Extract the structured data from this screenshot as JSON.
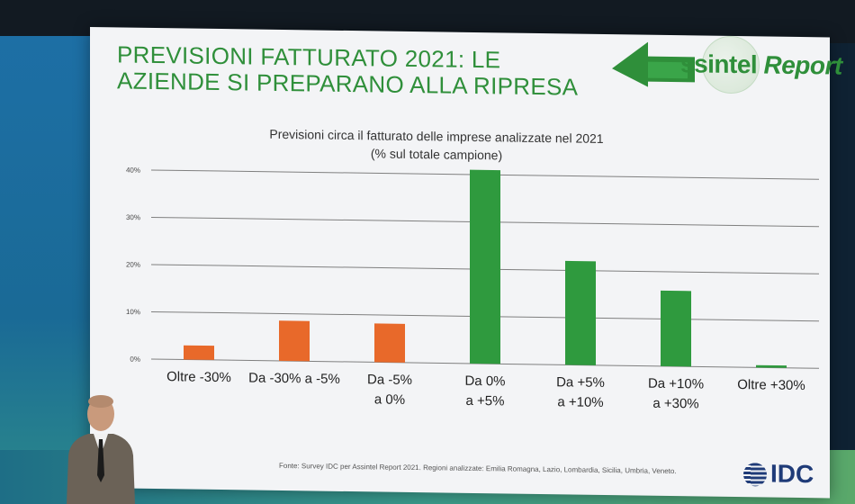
{
  "slide": {
    "title_line1": "PREVISIONI FATTURATO 2021: LE",
    "title_line2": "AZIENDE SI PREPARANO ALLA RIPRESA",
    "logo_text_a": "ssintel",
    "logo_text_b": "Report",
    "source": "Fonte: Survey IDC per Assintel Report 2021. Regioni analizzate: Emilia Romagna, Lazio, Lombardia, Sicilia, Umbria, Veneto.",
    "idc_logo_text": "IDC"
  },
  "chart_data": {
    "type": "bar",
    "title": "Previsioni circa il fatturato delle imprese analizzate nel 2021",
    "subtitle": "(% sul totale campione)",
    "categories": [
      [
        "Oltre -30%"
      ],
      [
        "Da -30% a -5%"
      ],
      [
        "Da -5%",
        "a 0%"
      ],
      [
        "Da 0%",
        "a +5%"
      ],
      [
        "Da +5%",
        "a +10%"
      ],
      [
        "Da +10%",
        "a +30%"
      ],
      [
        "Oltre +30%"
      ]
    ],
    "values": [
      3,
      8.5,
      8.2,
      41,
      22,
      16,
      0.5
    ],
    "colors": [
      "#e8692a",
      "#e8692a",
      "#e8692a",
      "#2f9a3e",
      "#2f9a3e",
      "#2f9a3e",
      "#2f9a3e"
    ],
    "ylim": [
      0,
      40
    ],
    "yticks": [
      0,
      10,
      20,
      30,
      40
    ],
    "ytick_labels": [
      "0%",
      "10%",
      "20%",
      "30%",
      "40%"
    ],
    "grid": true,
    "legend": "none",
    "xlabel": "",
    "ylabel": ""
  },
  "colors": {
    "title_green": "#2f8f3a",
    "negative": "#e8692a",
    "positive": "#2f9a3e",
    "idc_blue": "#1f3b78"
  }
}
